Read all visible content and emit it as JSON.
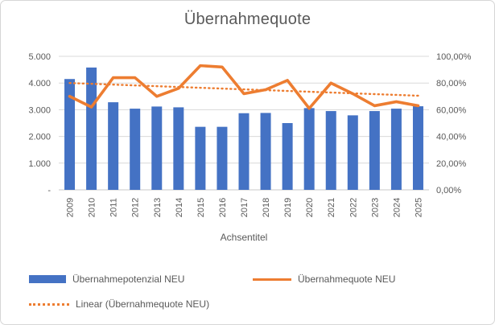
{
  "chart": {
    "title": "Übernahmequote",
    "x_axis_title": "Achsentitel"
  },
  "colors": {
    "bar": "#4472C4",
    "line": "#ED7D31",
    "trendline": "#ED7D31",
    "gridline": "#D9D9D9",
    "axis_line": "#C9C9C9",
    "text": "#595959"
  },
  "chart_data": {
    "type": "bar",
    "subtype": "combo-bar-line",
    "title": "Übernahmequote",
    "xlabel": "Achsentitel",
    "ylabel": "",
    "grid": true,
    "legend_position": "bottom",
    "categories": [
      "2009",
      "2010",
      "2011",
      "2012",
      "2013",
      "2014",
      "2015",
      "2016",
      "2017",
      "2018",
      "2019",
      "2020",
      "2021",
      "2022",
      "2023",
      "2024",
      "2025"
    ],
    "series": [
      {
        "name": "Übernahmepotenzial NEU",
        "type": "bar",
        "axis": "left",
        "color": "#4472C4",
        "values": [
          4150,
          4580,
          3280,
          3040,
          3120,
          3090,
          2360,
          2360,
          2870,
          2880,
          2500,
          3060,
          2950,
          2790,
          2950,
          3040,
          3130
        ]
      },
      {
        "name": "Übernahmequote NEU",
        "type": "line",
        "axis": "right",
        "color": "#ED7D31",
        "values_percent": [
          70,
          62,
          84,
          84,
          70,
          76,
          93,
          92,
          72,
          75,
          82,
          61,
          80,
          72,
          63,
          66,
          63
        ]
      },
      {
        "name": "Linear (Übernahmequote NEU)",
        "type": "trendline",
        "style": "dotted",
        "axis": "right",
        "color": "#ED7D31",
        "start_percent": 80,
        "end_percent": 70.5
      }
    ],
    "left_axis": {
      "min": 0,
      "max": 5000,
      "tick_labels": [
        "5.000",
        "4.000",
        "3.000",
        "2.000",
        "1.000",
        "-"
      ]
    },
    "right_axis": {
      "min_label": "0,00%",
      "max_label": "100,00%",
      "tick_labels": [
        "100,00%",
        "80,00%",
        "60,00%",
        "40,00%",
        "20,00%",
        "0,00%"
      ]
    }
  }
}
